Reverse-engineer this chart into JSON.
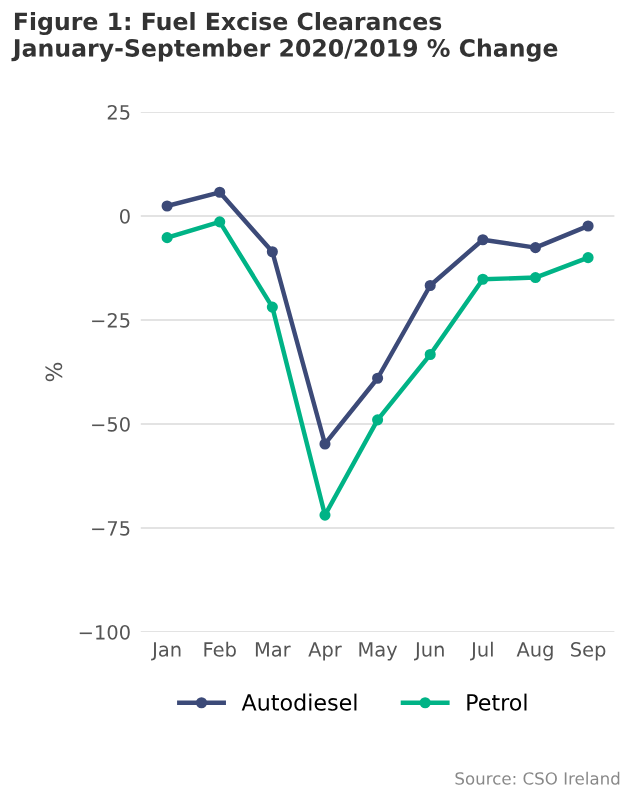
{
  "chart_data": {
    "type": "line",
    "title": "Figure 1: Fuel Excise Clearances January-September 2020/2019 % Change",
    "ylabel": "%",
    "categories": [
      "Jan",
      "Feb",
      "Mar",
      "Apr",
      "May",
      "Jun",
      "Jul",
      "Aug",
      "Sep"
    ],
    "series": [
      {
        "name": "Autodiesel",
        "color": "#3c4a78",
        "values": [
          2.4,
          5.7,
          -8.6,
          -54.8,
          -39,
          -16.7,
          -5.7,
          -7.6,
          -2.4
        ]
      },
      {
        "name": "Petrol",
        "color": "#00b386",
        "values": [
          -5.2,
          -1.4,
          -21.9,
          -71.9,
          -49,
          -33.3,
          -15.2,
          -14.8,
          -10
        ]
      }
    ],
    "ylim": [
      -100,
      25
    ],
    "yticks": [
      {
        "value": -100,
        "label": "−100"
      },
      {
        "value": -75,
        "label": "−75"
      },
      {
        "value": -50,
        "label": "−50"
      },
      {
        "value": -25,
        "label": "−25"
      },
      0,
      25
    ],
    "grid": "y",
    "legend": "bottom",
    "marker": "circle",
    "line_style": "solid",
    "annotations": [
      "Source: CSO Ireland"
    ]
  }
}
